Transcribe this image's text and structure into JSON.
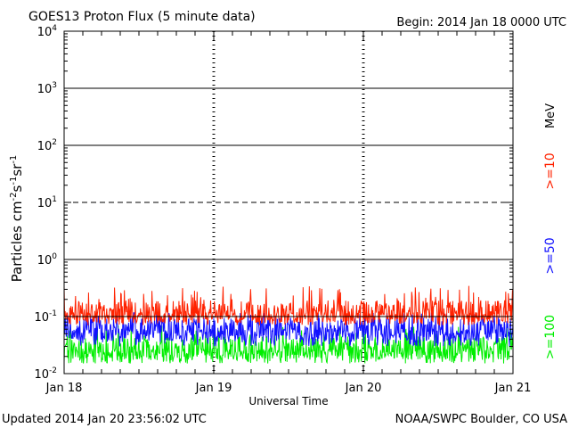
{
  "header": {
    "title": "GOES13 Proton Flux (5 minute data)",
    "begin": "Begin: 2014 Jan 18 0000 UTC"
  },
  "footer": {
    "updated": "Updated 2014 Jan 20 23:56:02 UTC",
    "credit": "NOAA/SWPC Boulder, CO USA"
  },
  "legend": {
    "unit": "MeV",
    "items": [
      {
        "label": ">=10",
        "color": "#ff2200"
      },
      {
        "label": ">=50",
        "color": "#1111ff"
      },
      {
        "label": ">=100",
        "color": "#00ee00"
      }
    ]
  },
  "colors": {
    "p10": "#ff2200",
    "p50": "#1111ff",
    "p100": "#00ee00",
    "threshold": "#000000"
  },
  "chart_data": {
    "type": "line",
    "title": "GOES13 Proton Flux (5 minute data)",
    "xlabel": "Universal Time",
    "ylabel": "Particles cm-2s-1sr-1",
    "y_scale": "log",
    "ylim": [
      0.01,
      10000
    ],
    "y_ticks": [
      {
        "base": "10",
        "exp": "-2"
      },
      {
        "base": "10",
        "exp": "-1"
      },
      {
        "base": "10",
        "exp": "0"
      },
      {
        "base": "10",
        "exp": "1"
      },
      {
        "base": "10",
        "exp": "2"
      },
      {
        "base": "10",
        "exp": "3"
      },
      {
        "base": "10",
        "exp": "4"
      }
    ],
    "x_ticks": [
      "Jan 18",
      "Jan 19",
      "Jan 20",
      "Jan 21"
    ],
    "xlim": [
      "2014-01-18T00:00Z",
      "2014-01-21T00:00Z"
    ],
    "grid": {
      "solid_decades": [
        0.1,
        1,
        100,
        1000
      ],
      "dashed_decades": [
        10
      ],
      "day_dividers": [
        "Jan 19",
        "Jan 20"
      ]
    },
    "series": [
      {
        "name": ">=10 MeV",
        "color": "#ff2200",
        "typical": 0.12,
        "range": [
          0.07,
          0.35
        ]
      },
      {
        "name": ">=50 MeV",
        "color": "#1111ff",
        "typical": 0.06,
        "range": [
          0.03,
          0.12
        ]
      },
      {
        "name": ">=100 MeV",
        "color": "#00ee00",
        "typical": 0.028,
        "range": [
          0.015,
          0.07
        ]
      }
    ]
  }
}
